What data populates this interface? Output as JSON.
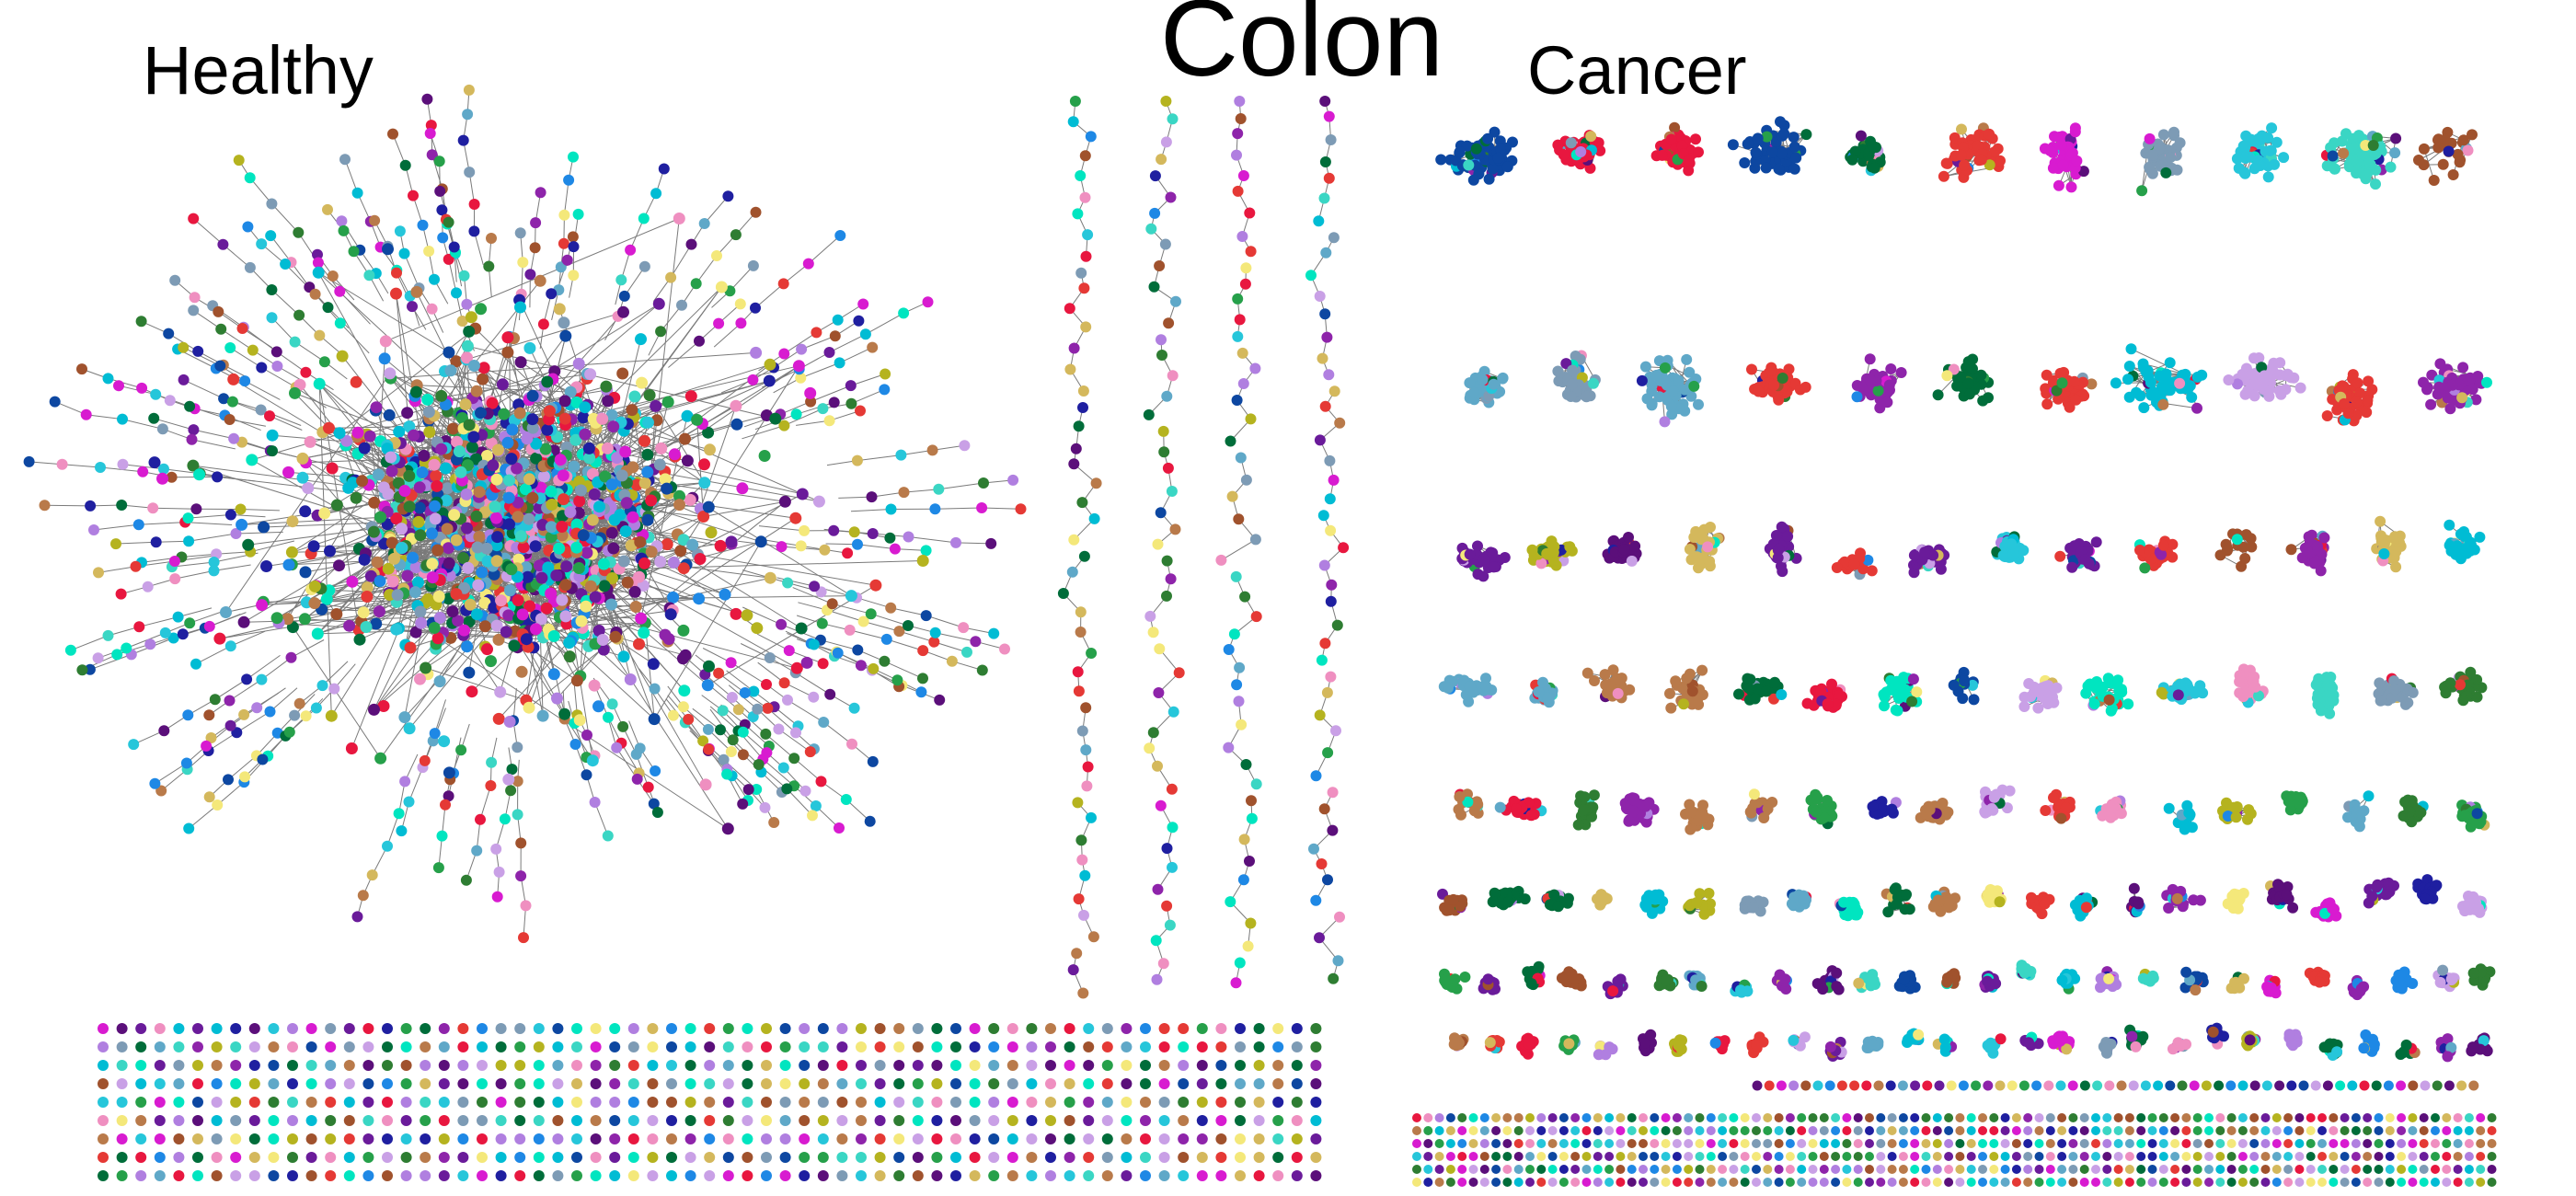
{
  "title": "Colon",
  "panels": {
    "healthy": {
      "label": "Healthy"
    },
    "cancer": {
      "label": "Cancer"
    }
  },
  "node_palette": [
    "#1f1fa0",
    "#5b0f7a",
    "#1e88e5",
    "#00bcd4",
    "#3ad6c4",
    "#00e5c0",
    "#2e7d32",
    "#26a04a",
    "#e53935",
    "#e8173f",
    "#d81bd0",
    "#c9a0e6",
    "#b07fe0",
    "#6a1b9a",
    "#d4b85c",
    "#b5b31f",
    "#f4e87a",
    "#a0522d",
    "#b97a4a",
    "#ef8fc0",
    "#5fa8c8",
    "#7d9bb5",
    "#26c6da",
    "#0d47a1",
    "#8e24aa",
    "#006d3a"
  ],
  "edge_color": "#7a7a7a"
}
